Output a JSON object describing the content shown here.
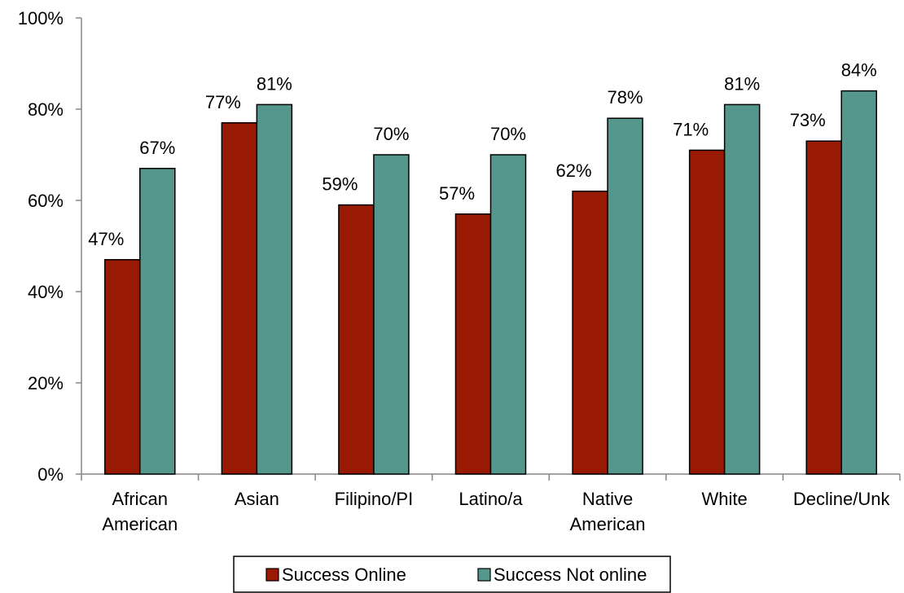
{
  "chart_data": {
    "type": "bar",
    "categories": [
      [
        "African",
        "American"
      ],
      [
        "Asian"
      ],
      [
        "Filipino/PI"
      ],
      [
        "Latino/a"
      ],
      [
        "Native",
        "American"
      ],
      [
        "White"
      ],
      [
        "Decline/Unk"
      ]
    ],
    "series": [
      {
        "name": "Success Online",
        "color": "#981a05",
        "values": [
          47,
          77,
          59,
          57,
          62,
          71,
          73
        ],
        "labels": [
          "47%",
          "77%",
          "59%",
          "57%",
          "62%",
          "71%",
          "73%"
        ]
      },
      {
        "name": "Success Not online",
        "color": "#55978c",
        "values": [
          67,
          81,
          70,
          70,
          78,
          81,
          84
        ],
        "labels": [
          "67%",
          "81%",
          "70%",
          "70%",
          "78%",
          "81%",
          "84%"
        ]
      }
    ],
    "ylim": [
      0,
      100
    ],
    "yticks": [
      {
        "value": 0,
        "label": "0%"
      },
      {
        "value": 20,
        "label": "20%"
      },
      {
        "value": 40,
        "label": "40%"
      },
      {
        "value": 60,
        "label": "60%"
      },
      {
        "value": 80,
        "label": "80%"
      },
      {
        "value": 100,
        "label": "100%"
      }
    ],
    "grid": false,
    "legend_position": "bottom"
  }
}
